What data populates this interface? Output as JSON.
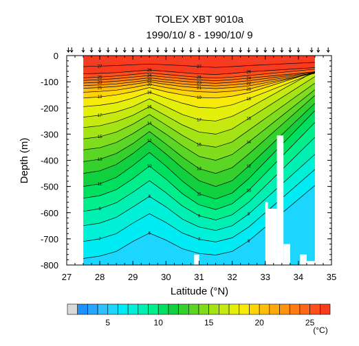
{
  "chart_data": {
    "type": "heatmap",
    "title": "TOLEX XBT 9010a",
    "subtitle": "1990/10/ 8 - 1990/10/ 9",
    "xlabel": "Latitude (°N)",
    "ylabel": "Depth (m)",
    "xlim": [
      27,
      35
    ],
    "ylim": [
      -800,
      0
    ],
    "x_ticks": [
      "27",
      "28",
      "29",
      "30",
      "31",
      "32",
      "33",
      "34",
      "35"
    ],
    "y_ticks": [
      "0",
      "-100",
      "-200",
      "-300",
      "-400",
      "-500",
      "-600",
      "-700",
      "-800"
    ],
    "colorbar": {
      "unit": "(°C)",
      "range": [
        2,
        27
      ],
      "step": 1,
      "tick_labels": [
        "5",
        "10",
        "15",
        "20",
        "25"
      ],
      "colors": [
        "#1e90ff",
        "#28a6ff",
        "#30bfff",
        "#1cd6ff",
        "#00ecf4",
        "#00f0d8",
        "#00f0b4",
        "#00ee8c",
        "#00e060",
        "#10d040",
        "#36d02c",
        "#5cd624",
        "#80dc1c",
        "#a4e414",
        "#c6ea10",
        "#e4f00c",
        "#f8ea08",
        "#ffd406",
        "#ffbe08",
        "#ffa80a",
        "#ff920e",
        "#ff7c12",
        "#ff6616",
        "#ff501c",
        "#f83a1e"
      ]
    },
    "xbt_stations": [
      27.05,
      27.15,
      27.5,
      27.75,
      28.0,
      28.25,
      28.5,
      28.75,
      29.0,
      29.25,
      29.5,
      29.75,
      30.0,
      30.25,
      30.5,
      30.75,
      31.0,
      31.25,
      31.5,
      31.75,
      32.0,
      32.25,
      32.5,
      32.75,
      33.0,
      33.25,
      33.5,
      33.75,
      34.0,
      34.4,
      34.6,
      34.9
    ],
    "mixed_layer": {
      "x": [
        27.5,
        28.0,
        28.5,
        29.0,
        29.5,
        30.0,
        30.5,
        31.0,
        31.5,
        32.0,
        32.5,
        33.0,
        33.5,
        34.0,
        34.5
      ],
      "bottom_temp": 28,
      "depth": [
        -20,
        -20,
        -18,
        -15,
        -12,
        -15,
        -20,
        -25,
        -28,
        -25,
        -20,
        -18,
        -15,
        -12,
        -10
      ]
    },
    "isotherms": {
      "x": [
        27.5,
        28.0,
        28.5,
        29.0,
        29.5,
        30.0,
        30.5,
        31.0,
        31.5,
        32.0,
        32.5,
        33.0
      ],
      "levels": [
        {
          "temp": 27,
          "depth": [
            -42,
            -40,
            -38,
            -35,
            -32,
            -35,
            -38,
            -42,
            -45,
            -42,
            -38,
            -35
          ]
        },
        {
          "temp": 26,
          "depth": [
            -70,
            -68,
            -65,
            -60,
            -55,
            -60,
            -65,
            -70,
            -72,
            -68,
            -62,
            -58
          ]
        },
        {
          "temp": 25,
          "depth": [
            -85,
            -82,
            -78,
            -72,
            -66,
            -72,
            -78,
            -83,
            -86,
            -82,
            -76,
            -70
          ]
        },
        {
          "temp": 24,
          "depth": [
            -95,
            -92,
            -88,
            -82,
            -76,
            -82,
            -88,
            -93,
            -96,
            -92,
            -86,
            -80
          ]
        },
        {
          "temp": 23,
          "depth": [
            -105,
            -102,
            -98,
            -92,
            -85,
            -92,
            -98,
            -103,
            -106,
            -102,
            -96,
            -88
          ]
        },
        {
          "temp": 22,
          "depth": [
            -115,
            -112,
            -108,
            -101,
            -93,
            -101,
            -108,
            -113,
            -116,
            -112,
            -106,
            -96
          ]
        },
        {
          "temp": 21,
          "depth": [
            -125,
            -122,
            -118,
            -110,
            -100,
            -110,
            -118,
            -123,
            -126,
            -122,
            -116,
            -104
          ]
        },
        {
          "temp": 20,
          "depth": [
            -140,
            -137,
            -132,
            -122,
            -110,
            -122,
            -132,
            -138,
            -140,
            -136,
            -128,
            -112
          ]
        },
        {
          "temp": 19,
          "depth": [
            -162,
            -158,
            -150,
            -138,
            -122,
            -138,
            -150,
            -160,
            -162,
            -155,
            -142,
            -122
          ]
        },
        {
          "temp": 18,
          "depth": [
            -195,
            -190,
            -180,
            -162,
            -140,
            -162,
            -182,
            -198,
            -200,
            -188,
            -165,
            -140
          ]
        },
        {
          "temp": 17,
          "depth": [
            -235,
            -228,
            -215,
            -195,
            -165,
            -195,
            -225,
            -245,
            -250,
            -232,
            -200,
            -165
          ]
        },
        {
          "temp": 16,
          "depth": [
            -275,
            -268,
            -252,
            -228,
            -195,
            -230,
            -265,
            -292,
            -300,
            -280,
            -240,
            -200
          ]
        },
        {
          "temp": 15,
          "depth": [
            -318,
            -310,
            -292,
            -262,
            -225,
            -265,
            -305,
            -340,
            -350,
            -330,
            -285,
            -240
          ]
        },
        {
          "temp": 14,
          "depth": [
            -360,
            -352,
            -332,
            -298,
            -258,
            -300,
            -345,
            -385,
            -400,
            -378,
            -330,
            -280
          ]
        },
        {
          "temp": 13,
          "depth": [
            -405,
            -396,
            -374,
            -336,
            -290,
            -338,
            -388,
            -432,
            -450,
            -428,
            -376,
            -320
          ]
        },
        {
          "temp": 12,
          "depth": [
            -450,
            -440,
            -416,
            -374,
            -325,
            -376,
            -430,
            -478,
            -500,
            -478,
            -422,
            -362
          ]
        },
        {
          "temp": 11,
          "depth": [
            -500,
            -490,
            -465,
            -420,
            -370,
            -422,
            -480,
            -528,
            -548,
            -525,
            -470,
            -405
          ]
        },
        {
          "temp": 10,
          "depth": [
            -545,
            -535,
            -512,
            -470,
            -422,
            -472,
            -528,
            -570,
            -588,
            -566,
            -515,
            -450
          ]
        },
        {
          "temp": 9,
          "depth": [
            -595,
            -585,
            -562,
            -522,
            -478,
            -524,
            -575,
            -612,
            -628,
            -608,
            -560,
            -498
          ]
        },
        {
          "temp": 8,
          "depth": [
            -650,
            -640,
            -618,
            -578,
            -538,
            -578,
            -625,
            -655,
            -668,
            -650,
            -605,
            -548
          ]
        },
        {
          "temp": 7,
          "depth": [
            -710,
            -700,
            -680,
            -640,
            -604,
            -638,
            -678,
            -702,
            -712,
            -696,
            -655,
            -600
          ]
        },
        {
          "temp": 6,
          "depth": [
            -775,
            -766,
            -748,
            -710,
            -678,
            -705,
            -738,
            -756,
            -762,
            -748,
            -708,
            -655
          ]
        }
      ]
    },
    "missing_data": [
      {
        "x": [
          33.0,
          33.08
        ],
        "depth": [
          -560,
          -800
        ]
      },
      {
        "x": [
          33.08,
          33.35
        ],
        "depth": [
          -585,
          -800
        ]
      },
      {
        "x": [
          33.35,
          33.55
        ],
        "depth": [
          -305,
          -800
        ]
      },
      {
        "x": [
          33.55,
          33.75
        ],
        "depth": [
          -720,
          -800
        ]
      },
      {
        "x": [
          34.05,
          34.25
        ],
        "depth": [
          -760,
          -800
        ]
      },
      {
        "x": [
          34.25,
          34.5
        ],
        "depth": [
          -785,
          -800
        ]
      },
      {
        "x": [
          30.85,
          31.0
        ],
        "depth": [
          -760,
          -800
        ]
      }
    ]
  }
}
